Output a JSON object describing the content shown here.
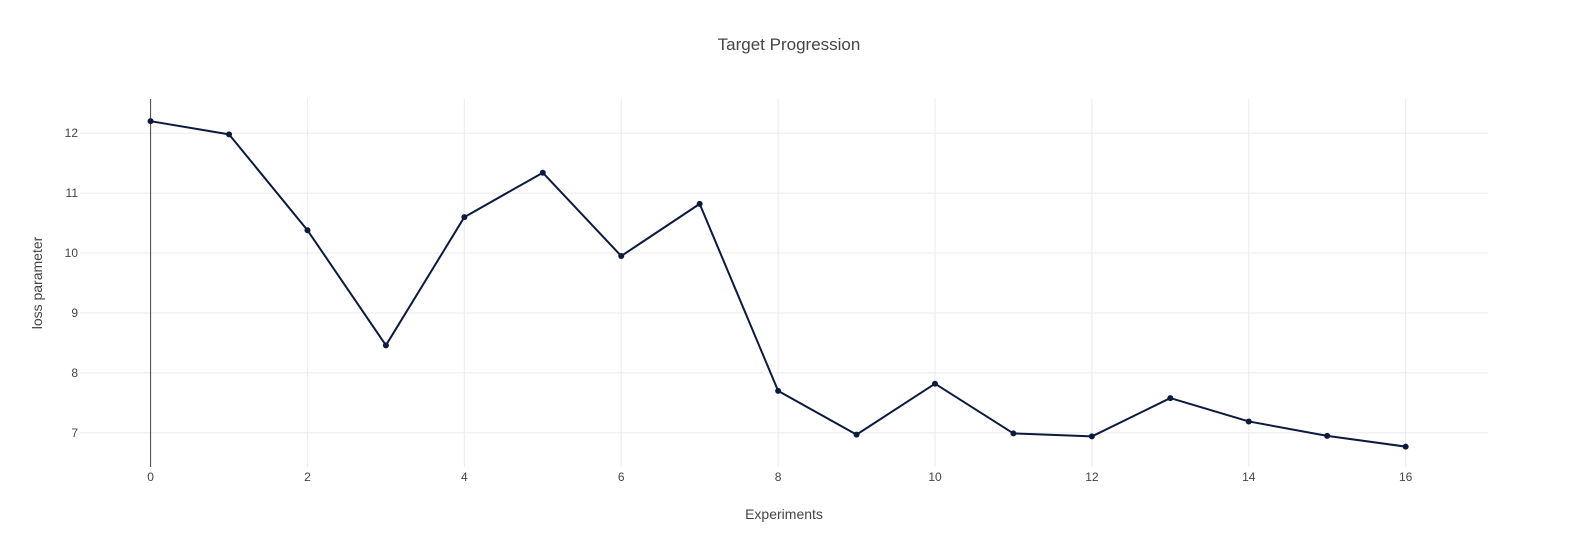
{
  "colors": {
    "series": "#0b1a3d",
    "grid": "#ebebeb",
    "text": "#444444",
    "zeroline": "#444444"
  },
  "chart_data": {
    "type": "line",
    "title": "Target Progression",
    "xlabel": "Experiments",
    "ylabel": "loss parameter",
    "xlim": [
      -0.9,
      17.05
    ],
    "ylim": [
      6.43,
      12.57
    ],
    "x_ticks": [
      0,
      2,
      4,
      6,
      8,
      10,
      12,
      14,
      16
    ],
    "x_tick_labels": [
      "0",
      "2",
      "4",
      "6",
      "8",
      "10",
      "12",
      "14",
      "16"
    ],
    "y_ticks": [
      7,
      8,
      9,
      10,
      11,
      12
    ],
    "y_tick_labels": [
      "7",
      "8",
      "9",
      "10",
      "11",
      "12"
    ],
    "grid": true,
    "legend": "none",
    "markers": true,
    "series": [
      {
        "x": [
          0,
          1,
          2,
          3,
          4,
          5,
          6,
          7,
          8,
          9,
          10,
          11,
          12,
          13,
          14,
          15,
          16
        ],
        "values": [
          12.2,
          11.98,
          10.38,
          8.46,
          10.6,
          11.34,
          9.95,
          10.82,
          7.7,
          6.97,
          7.82,
          6.99,
          6.94,
          7.58,
          7.19,
          6.95,
          6.77
        ]
      }
    ]
  }
}
